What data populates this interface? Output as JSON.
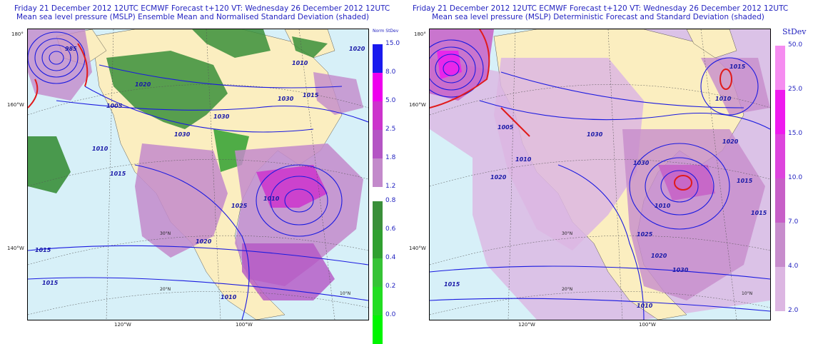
{
  "left_panel": {
    "title_line1": "Friday 21 December 2012 12UTC ECMWF Forecast t+120  VT: Wednesday 26 December 2012 12UTC",
    "title_line2": "Mean sea level pressure (MSLP) Ensemble Mean and Normalised Standard Deviation (shaded)",
    "axis_labels": {
      "lat_180": "180°",
      "lat_160w": "160°W",
      "lat_140w": "140°W",
      "lon_120w": "120°W",
      "lon_100w": "100°W"
    },
    "map_labels": {
      "parallel_30n": "30°N",
      "parallel_20n": "20°N",
      "parallel_10n": "10°N"
    },
    "isobar_labels": [
      "985",
      "1020",
      "1005",
      "1030",
      "1030",
      "1010",
      "1015",
      "1010",
      "1025",
      "1020",
      "1015",
      "1010",
      "1015",
      "1020",
      "1030",
      "1015",
      "1010"
    ],
    "colorbar": {
      "title": "Norm StDev",
      "upper_ticks": [
        "15.0",
        "8.0",
        "5.0",
        "2.5",
        "1.8",
        "1.2"
      ],
      "upper_colors": [
        "#1a1aee",
        "#ee00ee",
        "#cc33cc",
        "#b455c4",
        "#c38acb"
      ],
      "lower_ticks": [
        "0.8",
        "0.6",
        "0.4",
        "0.2",
        "0.0"
      ],
      "lower_colors": [
        "#3a8f3a",
        "#30a030",
        "#36c336",
        "#22dd22",
        "#00f500"
      ]
    }
  },
  "right_panel": {
    "title_line1": "Friday 21 December 2012 12UTC ECMWF Forecast t+120  VT: Wednesday 26 December 2012 12UTC",
    "title_line2": "Mean sea level pressure (MSLP) Deterministic Forecast and Standard Deviation (shaded)",
    "axis_labels": {
      "lat_180": "180°",
      "lat_160w": "160°W",
      "lat_140w": "140°W",
      "lon_120w": "120°W",
      "lon_100w": "100°W"
    },
    "map_labels": {
      "parallel_30n": "30°N",
      "parallel_20n": "20°N",
      "parallel_10n": "10°N"
    },
    "isobar_labels": [
      "1005",
      "1020",
      "1010",
      "1030",
      "1030",
      "1015",
      "1010",
      "1020",
      "1025",
      "1010",
      "1015",
      "1020",
      "1015",
      "1030",
      "1010",
      "1015"
    ],
    "colorbar": {
      "title": "StDev",
      "ticks": [
        "50.0",
        "25.0",
        "15.0",
        "10.0",
        "7.0",
        "4.0",
        "2.0"
      ],
      "colors": [
        "#f58cf0",
        "#ee1aee",
        "#dd44dd",
        "#c75fc7",
        "#c78ccc",
        "#dcb6e2"
      ]
    }
  },
  "colors": {
    "ocean": "#d7f0f8",
    "land": "#fbeec0",
    "isobar": "#1a1ae0",
    "isobar_bold": "#e01a1a",
    "title_text": "#1f1fbf"
  }
}
